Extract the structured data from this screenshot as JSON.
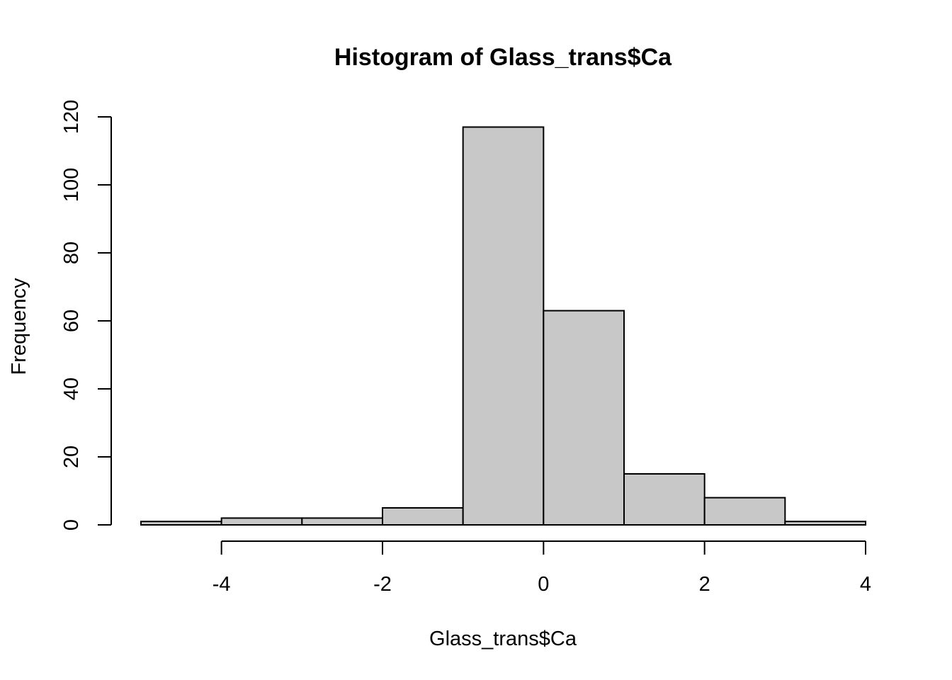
{
  "chart_data": {
    "type": "bar",
    "title": "Histogram of Glass_trans$Ca",
    "xlabel": "Glass_trans$Ca",
    "ylabel": "Frequency",
    "bins": [
      {
        "x0": -5,
        "x1": -4,
        "count": 1
      },
      {
        "x0": -4,
        "x1": -3,
        "count": 2
      },
      {
        "x0": -3,
        "x1": -2,
        "count": 2
      },
      {
        "x0": -2,
        "x1": -1,
        "count": 5
      },
      {
        "x0": -1,
        "x1": 0,
        "count": 117
      },
      {
        "x0": 0,
        "x1": 1,
        "count": 63
      },
      {
        "x0": 1,
        "x1": 2,
        "count": 15
      },
      {
        "x0": 2,
        "x1": 3,
        "count": 8
      },
      {
        "x0": 3,
        "x1": 4,
        "count": 1
      }
    ],
    "xticks": [
      -4,
      -2,
      0,
      2,
      4
    ],
    "yticks": [
      0,
      20,
      40,
      60,
      80,
      100,
      120
    ],
    "xlim": [
      -5,
      4
    ],
    "ylim": [
      0,
      120
    ],
    "bar_color": "#c8c8c8",
    "grid": false,
    "legend": false
  }
}
